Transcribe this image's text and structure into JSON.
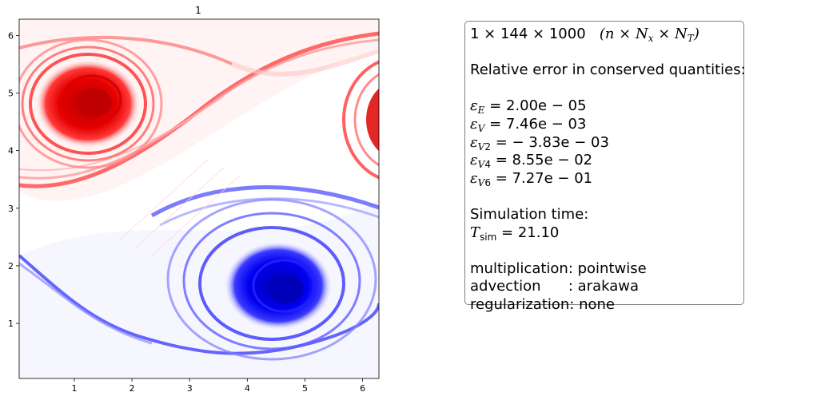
{
  "chart_data": {
    "type": "heatmap",
    "title": "1",
    "colormap": "seismic",
    "xlim": [
      0.0436,
      6.2832
    ],
    "ylim": [
      0.0436,
      6.2832
    ],
    "xticks": [
      "1",
      "2",
      "3",
      "4",
      "5",
      "6"
    ],
    "yticks": [
      "1",
      "2",
      "3",
      "4",
      "5",
      "6"
    ],
    "vortices": [
      {
        "sign": "positive",
        "color": "red",
        "center": [
          1.5,
          4.8
        ]
      },
      {
        "sign": "negative",
        "color": "blue",
        "center": [
          4.5,
          1.6
        ]
      }
    ]
  },
  "info": {
    "grid_main": "1 × 144 × 1000",
    "grid_note": "(n × N",
    "heading": "Relative error in conserved quantities:",
    "eps_E": "= 2.00e − 05",
    "eps_V": "= 7.46e − 03",
    "eps_V2": "= − 3.83e − 03",
    "eps_V4": "= 8.55e − 02",
    "eps_V6": "= 7.27e − 01",
    "sim_label": "Simulation time:",
    "t_sim": "= 21.10",
    "multiplication": "multiplication: pointwise",
    "advection": "advection      : arakawa",
    "regularization": "regularization: none"
  }
}
